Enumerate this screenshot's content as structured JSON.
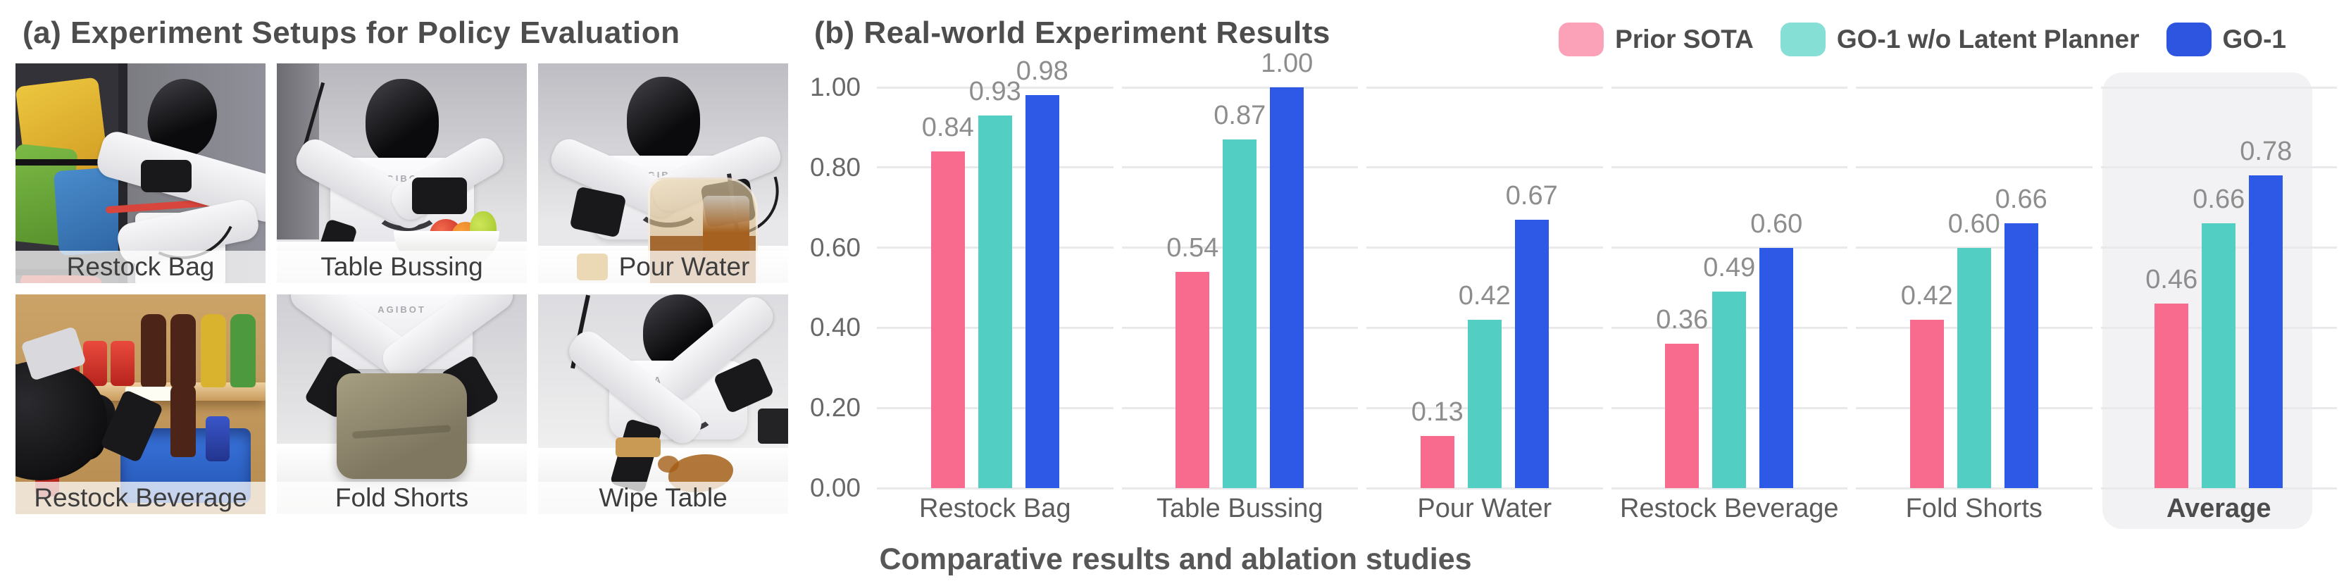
{
  "figure": {
    "caption": "Comparative results and ablation studies"
  },
  "panel_a": {
    "title": "(a) Experiment Setups for Policy Evaluation",
    "robot_brand": "AGIBOT",
    "photos": [
      {
        "label": "Restock Bag"
      },
      {
        "label": "Table Bussing"
      },
      {
        "label": "Pour Water"
      },
      {
        "label": "Restock Beverage"
      },
      {
        "label": "Fold Shorts"
      },
      {
        "label": "Wipe Table"
      }
    ]
  },
  "panel_b": {
    "title": "(b) Real-world Experiment Results"
  },
  "chart_data": {
    "type": "bar",
    "title": "(b) Real-world Experiment Results",
    "categories": [
      "Restock Bag",
      "Table Bussing",
      "Pour Water",
      "Restock Beverage",
      "Fold Shorts",
      "Average"
    ],
    "series": [
      {
        "name": "Prior SOTA",
        "color": "#F96B8E",
        "legend_color": "#FBA2B9",
        "values": [
          0.84,
          0.54,
          0.13,
          0.36,
          0.42,
          0.46
        ]
      },
      {
        "name": "GO-1 w/o Latent Planner",
        "color": "#53CEC3",
        "legend_color": "#86DFD5",
        "values": [
          0.93,
          0.87,
          0.42,
          0.49,
          0.6,
          0.66
        ]
      },
      {
        "name": "GO-1",
        "color": "#2E58E6",
        "legend_color": "#2E55E0",
        "values": [
          0.98,
          1.0,
          0.67,
          0.6,
          0.66,
          0.78
        ]
      }
    ],
    "yticks": [
      "1.00",
      "0.80",
      "0.60",
      "0.40",
      "0.20",
      "0.00"
    ],
    "ylim": [
      0,
      1.0
    ],
    "grid": true,
    "legend_position": "top-right",
    "highlight_category": "Average",
    "grid_color": "#E9E9EB",
    "highlight_color": "#F2F2F4",
    "value_label_color": "#8D8D8D"
  }
}
